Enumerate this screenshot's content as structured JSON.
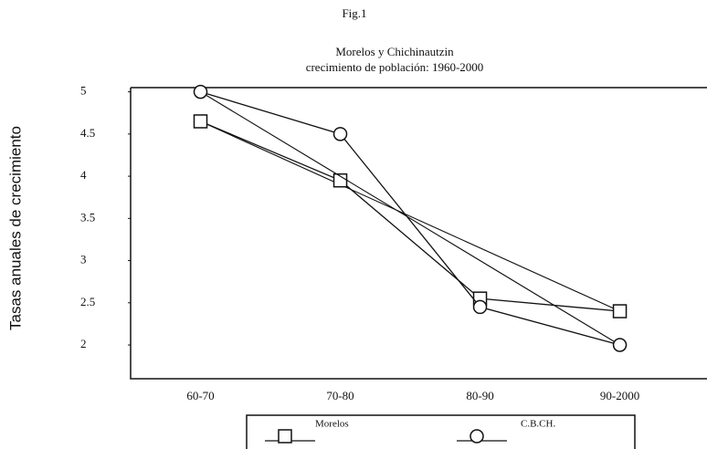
{
  "chart_data": {
    "type": "line",
    "figure_label": "Fig.1",
    "title": "Morelos  y Chichinautzin",
    "subtitle": "crecimiento de población: 1960-2000",
    "y_label": "Tasas anuales de crecimiento",
    "categories": [
      "60-70",
      "70-80",
      "80-90",
      "90-2000"
    ],
    "series": [
      {
        "name": "Morelos",
        "color": "#111111",
        "marker": "square",
        "values": [
          4.65,
          3.95,
          2.55,
          2.4
        ]
      },
      {
        "name": "C.B.CH.",
        "color": "#111111",
        "marker": "circle",
        "values": [
          5.0,
          4.5,
          2.45,
          2.0
        ]
      }
    ],
    "ylim": [
      1.6,
      5.05
    ],
    "yticks": [
      5,
      4.5,
      4,
      3.5,
      3,
      2.5,
      2
    ]
  }
}
